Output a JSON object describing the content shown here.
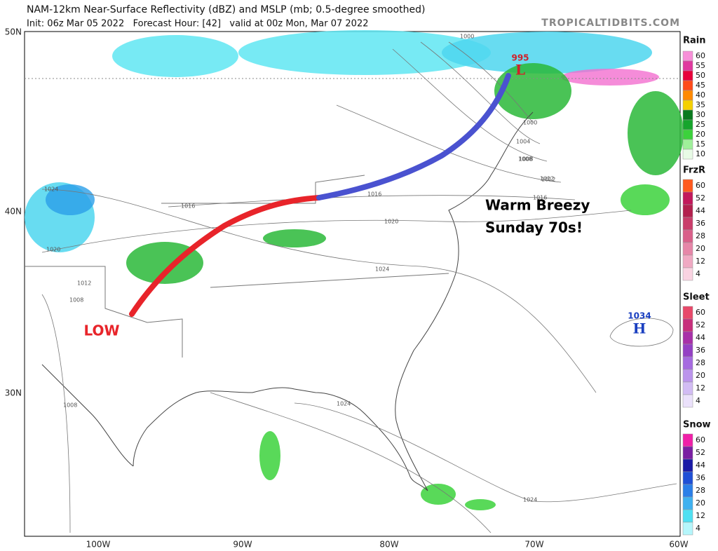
{
  "header": {
    "title": "NAM-12km Near-Surface Reflectivity (dBZ) and MSLP (mb; 0.5-degree smoothed)",
    "subtitle": "Init: 06z Mar 05 2022   Forecast Hour: [42]   valid at 00z Mon, Mar 07 2022",
    "source": "TROPICALTIDBITS.COM"
  },
  "map": {
    "lat_labels": [
      "50N",
      "40N",
      "30N"
    ],
    "lon_labels": [
      "100W",
      "90W",
      "80W",
      "70W",
      "60W"
    ],
    "annotations": {
      "low_text": "LOW",
      "warm_text_1": "Warm Breezy",
      "warm_text_2": "Sunday 70s!",
      "low_pressure": "995",
      "low_symbol": "L",
      "high_pressure": "1034",
      "high_symbol": "H"
    },
    "isobar_labels": [
      "1000",
      "1004",
      "1008",
      "1012",
      "1016",
      "1020",
      "1024",
      "1024",
      "1016",
      "1020",
      "1012",
      "1008",
      "1024",
      "1008",
      "1024",
      "1016",
      "1012",
      "1008",
      "1000"
    ]
  },
  "legends": [
    {
      "title": "Rain",
      "labels": [
        "60",
        "55",
        "50",
        "45",
        "40",
        "35",
        "30",
        "25",
        "20",
        "15",
        "10"
      ],
      "colors": [
        "#f78fd8",
        "#e0399f",
        "#e8003b",
        "#ff4b1a",
        "#ff8a00",
        "#f5d000",
        "#0a7a1f",
        "#16a52c",
        "#3cd23c",
        "#9ff09a",
        "#e8fbe6"
      ]
    },
    {
      "title": "FrzR",
      "labels": [
        "60",
        "52",
        "44",
        "36",
        "28",
        "20",
        "12",
        "4"
      ],
      "colors": [
        "#ff5a1f",
        "#c2185b",
        "#b3204e",
        "#c93d6a",
        "#d9608a",
        "#e686a8",
        "#f0a9c3",
        "#fad3e2"
      ]
    },
    {
      "title": "Sleet",
      "labels": [
        "60",
        "52",
        "44",
        "36",
        "28",
        "20",
        "12",
        "4"
      ],
      "colors": [
        "#e8496a",
        "#c72f7c",
        "#a830a8",
        "#9440c4",
        "#a66be0",
        "#bb94ec",
        "#d2bcf4",
        "#ebe1fb"
      ]
    },
    {
      "title": "Snow",
      "labels": [
        "60",
        "52",
        "44",
        "36",
        "28",
        "20",
        "12",
        "4"
      ],
      "colors": [
        "#f020a8",
        "#7a1fa2",
        "#1a1aa6",
        "#1f4fd6",
        "#2b7fe8",
        "#3fb1f0",
        "#4fe0f2",
        "#b5f6fb"
      ]
    }
  ]
}
